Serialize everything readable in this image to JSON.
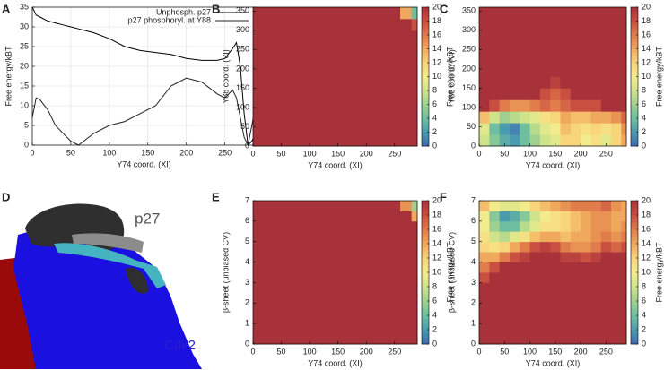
{
  "colorscale": [
    [
      0,
      "#3d6bb3"
    ],
    [
      2,
      "#4a9bb0"
    ],
    [
      4,
      "#6dbfa0"
    ],
    [
      6,
      "#9fd08f"
    ],
    [
      8,
      "#cfe38b"
    ],
    [
      10,
      "#f3ec8c"
    ],
    [
      12,
      "#f8d47a"
    ],
    [
      14,
      "#f0a85c"
    ],
    [
      16,
      "#e07d4b"
    ],
    [
      18,
      "#c94f41"
    ],
    [
      20,
      "#a8323a"
    ]
  ],
  "molecular_view": {
    "panel": "D",
    "labels": [
      "p27",
      "Cdk2"
    ]
  },
  "chart_data": [
    {
      "type": "line",
      "panel": "A",
      "x_label": "Y74 coord. (XI)",
      "y_label": "Free energy/kBT",
      "grid": true,
      "legend": "top-right",
      "x": [
        0,
        5,
        10,
        20,
        30,
        40,
        50,
        60,
        70,
        80,
        100,
        120,
        140,
        160,
        180,
        200,
        220,
        240,
        250,
        260,
        265,
        270,
        275,
        280,
        285,
        290
      ],
      "series": [
        {
          "name": "Unphosph. p27",
          "color": "#000000",
          "values": [
            35,
            33,
            32.5,
            31.5,
            31,
            30.5,
            30,
            29.5,
            29,
            28.5,
            27,
            25,
            24,
            23.5,
            23,
            22,
            21.5,
            21.5,
            22,
            24.5,
            26,
            20,
            8,
            0,
            1,
            3
          ]
        },
        {
          "name": "p27 phosphoryl. at Y88",
          "color": "#222222",
          "values": [
            7,
            12,
            11.5,
            9,
            5,
            3,
            1,
            0,
            1.5,
            3,
            5,
            6,
            8,
            10,
            15,
            17,
            16,
            13,
            12,
            14,
            12,
            7,
            2,
            0,
            5,
            10
          ]
        }
      ],
      "xlim": [
        0,
        290
      ],
      "xticks": [
        0,
        50,
        100,
        150,
        200,
        250
      ],
      "ylim": [
        0,
        35
      ],
      "yticks": [
        0,
        5,
        10,
        15,
        20,
        25,
        30,
        35
      ]
    },
    {
      "type": "heatmap",
      "panel": "B",
      "x_label": "Y74 coord. (XI)",
      "y_label": "Y88 coord. (VI)",
      "colorbar_label": "Free energy/kBT",
      "xbins": [
        0,
        20,
        40,
        60,
        80,
        100,
        120,
        140,
        160,
        180,
        200,
        220,
        240,
        260,
        280,
        290
      ],
      "ybins": [
        0,
        30,
        60,
        90,
        120,
        150,
        180,
        210,
        240,
        270,
        300,
        330,
        360
      ],
      "z": [
        [
          20,
          20,
          20,
          20,
          20,
          20,
          20,
          20,
          20,
          20,
          20,
          20,
          20,
          20,
          20
        ],
        [
          20,
          20,
          20,
          20,
          20,
          20,
          20,
          20,
          20,
          20,
          20,
          20,
          20,
          20,
          20
        ],
        [
          20,
          20,
          20,
          20,
          20,
          20,
          20,
          20,
          20,
          20,
          20,
          20,
          20,
          20,
          20
        ],
        [
          20,
          20,
          20,
          20,
          20,
          20,
          20,
          20,
          20,
          20,
          20,
          20,
          20,
          20,
          20
        ],
        [
          20,
          20,
          20,
          20,
          20,
          20,
          20,
          20,
          20,
          20,
          20,
          20,
          20,
          20,
          20
        ],
        [
          20,
          20,
          20,
          20,
          20,
          20,
          20,
          20,
          20,
          20,
          20,
          20,
          20,
          20,
          20
        ],
        [
          20,
          20,
          20,
          20,
          20,
          20,
          20,
          20,
          20,
          20,
          20,
          20,
          20,
          20,
          20
        ],
        [
          20,
          20,
          20,
          20,
          20,
          20,
          20,
          20,
          20,
          20,
          20,
          20,
          20,
          20,
          20
        ],
        [
          20,
          20,
          20,
          20,
          20,
          20,
          20,
          20,
          20,
          20,
          20,
          20,
          20,
          20,
          20
        ],
        [
          20,
          20,
          20,
          20,
          20,
          20,
          20,
          20,
          20,
          20,
          20,
          20,
          20,
          20,
          20
        ],
        [
          20,
          20,
          20,
          20,
          20,
          20,
          20,
          20,
          20,
          20,
          20,
          20,
          20,
          20,
          18
        ],
        [
          20,
          20,
          20,
          20,
          20,
          20,
          20,
          20,
          20,
          20,
          20,
          20,
          20,
          14,
          4
        ]
      ],
      "xlim": [
        0,
        290
      ],
      "xticks": [
        0,
        50,
        100,
        150,
        200,
        250
      ],
      "ylim": [
        0,
        360
      ],
      "yticks": [
        0,
        50,
        100,
        150,
        200,
        250,
        300,
        350
      ],
      "clim": [
        0,
        20
      ],
      "cticks": [
        0,
        2,
        4,
        6,
        8,
        10,
        12,
        14,
        16,
        18,
        20
      ]
    },
    {
      "type": "heatmap",
      "panel": "C",
      "x_label": "Y74 coord. (XI)",
      "y_label": "Y88 coord. (VI)",
      "colorbar_label": "Free energy/kBT",
      "xbins": [
        0,
        20,
        40,
        60,
        80,
        100,
        120,
        140,
        160,
        180,
        200,
        220,
        240,
        260,
        280,
        290
      ],
      "ybins": [
        0,
        30,
        60,
        90,
        120,
        150,
        180,
        210,
        240,
        270,
        300,
        330,
        360
      ],
      "z": [
        [
          8,
          5,
          3,
          2,
          4,
          6,
          8,
          9,
          12,
          12,
          10,
          11,
          9,
          12,
          14
        ],
        [
          9,
          4,
          2,
          1,
          4,
          7,
          9,
          10,
          13,
          12,
          11,
          12,
          11,
          12,
          15
        ],
        [
          13,
          8,
          6,
          7,
          8,
          9,
          11,
          12,
          14,
          13,
          13,
          14,
          14,
          15,
          17
        ],
        [
          20,
          18,
          16,
          15,
          15,
          16,
          17,
          16,
          17,
          18,
          18,
          18,
          20,
          20,
          20
        ],
        [
          20,
          20,
          20,
          20,
          20,
          20,
          18,
          17,
          18,
          20,
          20,
          20,
          20,
          20,
          20
        ],
        [
          20,
          20,
          20,
          20,
          20,
          20,
          20,
          19,
          20,
          20,
          20,
          20,
          20,
          20,
          20
        ],
        [
          20,
          20,
          20,
          20,
          20,
          20,
          20,
          20,
          20,
          20,
          20,
          20,
          20,
          20,
          20
        ],
        [
          20,
          20,
          20,
          20,
          20,
          20,
          20,
          20,
          20,
          20,
          20,
          20,
          20,
          20,
          20
        ],
        [
          20,
          20,
          20,
          20,
          20,
          20,
          20,
          20,
          20,
          20,
          20,
          20,
          20,
          20,
          20
        ],
        [
          20,
          20,
          20,
          20,
          20,
          20,
          20,
          20,
          20,
          20,
          20,
          20,
          20,
          20,
          20
        ],
        [
          20,
          20,
          20,
          20,
          20,
          20,
          20,
          20,
          20,
          20,
          20,
          20,
          20,
          20,
          20
        ],
        [
          20,
          20,
          20,
          20,
          20,
          20,
          20,
          20,
          20,
          20,
          20,
          20,
          20,
          20,
          20
        ]
      ],
      "xlim": [
        0,
        290
      ],
      "xticks": [
        0,
        50,
        100,
        150,
        200,
        250
      ],
      "ylim": [
        0,
        360
      ],
      "yticks": [
        0,
        50,
        100,
        150,
        200,
        250,
        300,
        350
      ],
      "clim": [
        0,
        20
      ],
      "cticks": [
        0,
        2,
        4,
        6,
        8,
        10,
        12,
        14,
        16,
        18,
        20
      ]
    },
    {
      "type": "heatmap",
      "panel": "E",
      "x_label": "Y74 coord. (XI)",
      "y_label": "β-sheet (unbiased CV)",
      "colorbar_label": "Free energy/kBT",
      "xbins": [
        0,
        20,
        40,
        60,
        80,
        100,
        120,
        140,
        160,
        180,
        200,
        220,
        240,
        260,
        280,
        290
      ],
      "ybins": [
        0,
        0.5,
        1,
        1.5,
        2,
        2.5,
        3,
        3.5,
        4,
        4.5,
        5,
        5.5,
        6,
        6.5,
        7
      ],
      "z": [
        [
          20,
          20,
          20,
          20,
          20,
          20,
          20,
          20,
          20,
          20,
          20,
          20,
          20,
          20,
          20
        ],
        [
          20,
          20,
          20,
          20,
          20,
          20,
          20,
          20,
          20,
          20,
          20,
          20,
          20,
          20,
          20
        ],
        [
          20,
          20,
          20,
          20,
          20,
          20,
          20,
          20,
          20,
          20,
          20,
          20,
          20,
          20,
          20
        ],
        [
          20,
          20,
          20,
          20,
          20,
          20,
          20,
          20,
          20,
          20,
          20,
          20,
          20,
          20,
          20
        ],
        [
          20,
          20,
          20,
          20,
          20,
          20,
          20,
          20,
          20,
          20,
          20,
          20,
          20,
          20,
          20
        ],
        [
          20,
          20,
          20,
          20,
          20,
          20,
          20,
          20,
          20,
          20,
          20,
          20,
          20,
          20,
          20
        ],
        [
          20,
          20,
          20,
          20,
          20,
          20,
          20,
          20,
          20,
          20,
          20,
          20,
          20,
          20,
          20
        ],
        [
          20,
          20,
          20,
          20,
          20,
          20,
          20,
          20,
          20,
          20,
          20,
          20,
          20,
          20,
          20
        ],
        [
          20,
          20,
          20,
          20,
          20,
          20,
          20,
          20,
          20,
          20,
          20,
          20,
          20,
          20,
          20
        ],
        [
          20,
          20,
          20,
          20,
          20,
          20,
          20,
          20,
          20,
          20,
          20,
          20,
          20,
          20,
          20
        ],
        [
          20,
          20,
          20,
          20,
          20,
          20,
          20,
          20,
          20,
          20,
          20,
          20,
          20,
          20,
          20
        ],
        [
          20,
          20,
          20,
          20,
          20,
          20,
          20,
          20,
          20,
          20,
          20,
          20,
          20,
          20,
          20
        ],
        [
          20,
          20,
          20,
          20,
          20,
          20,
          20,
          20,
          20,
          20,
          20,
          20,
          20,
          20,
          14
        ],
        [
          20,
          20,
          20,
          20,
          20,
          20,
          20,
          20,
          20,
          20,
          20,
          20,
          20,
          15,
          6
        ]
      ],
      "xlim": [
        0,
        290
      ],
      "xticks": [
        0,
        50,
        100,
        150,
        200,
        250
      ],
      "ylim": [
        0,
        7
      ],
      "yticks": [
        0,
        1,
        2,
        3,
        4,
        5,
        6,
        7
      ],
      "clim": [
        0,
        20
      ],
      "cticks": [
        0,
        2,
        4,
        6,
        8,
        10,
        12,
        14,
        16,
        18,
        20
      ]
    },
    {
      "type": "heatmap",
      "panel": "F",
      "x_label": "Y74 coord. (XI)",
      "y_label": "β-sheet (unbiased CV)",
      "colorbar_label": "Free energy/kBT",
      "xbins": [
        0,
        20,
        40,
        60,
        80,
        100,
        120,
        140,
        160,
        180,
        200,
        220,
        240,
        260,
        280,
        290
      ],
      "ybins": [
        0,
        0.5,
        1,
        1.5,
        2,
        2.5,
        3,
        3.5,
        4,
        4.5,
        5,
        5.5,
        6,
        6.5,
        7
      ],
      "z": [
        [
          20,
          20,
          20,
          20,
          20,
          20,
          20,
          20,
          20,
          20,
          20,
          20,
          20,
          20,
          20
        ],
        [
          20,
          20,
          20,
          20,
          20,
          20,
          20,
          20,
          20,
          20,
          20,
          20,
          20,
          20,
          20
        ],
        [
          20,
          20,
          20,
          20,
          20,
          20,
          20,
          20,
          20,
          20,
          20,
          20,
          20,
          20,
          20
        ],
        [
          20,
          20,
          20,
          20,
          20,
          20,
          20,
          20,
          20,
          20,
          20,
          20,
          20,
          20,
          20
        ],
        [
          20,
          20,
          20,
          20,
          20,
          20,
          20,
          20,
          20,
          20,
          20,
          20,
          20,
          20,
          20
        ],
        [
          20,
          20,
          20,
          20,
          20,
          20,
          20,
          20,
          20,
          20,
          20,
          20,
          20,
          20,
          20
        ],
        [
          18,
          20,
          20,
          20,
          20,
          20,
          20,
          20,
          20,
          20,
          20,
          20,
          20,
          20,
          20
        ],
        [
          16,
          18,
          20,
          20,
          20,
          20,
          20,
          20,
          20,
          20,
          20,
          20,
          20,
          20,
          20
        ],
        [
          14,
          14,
          16,
          18,
          19,
          20,
          20,
          20,
          19,
          19,
          18,
          19,
          20,
          20,
          20
        ],
        [
          12,
          11,
          12,
          14,
          16,
          18,
          19,
          18,
          16,
          15,
          15,
          16,
          18,
          17,
          18
        ],
        [
          11,
          8,
          7,
          9,
          11,
          13,
          14,
          14,
          13,
          14,
          14,
          15,
          16,
          15,
          16
        ],
        [
          10,
          6,
          4,
          4,
          7,
          9,
          11,
          11,
          12,
          13,
          14,
          15,
          15,
          14,
          15
        ],
        [
          10,
          5,
          2,
          3,
          5,
          8,
          10,
          11,
          12,
          13,
          14,
          15,
          15,
          14,
          14
        ],
        [
          13,
          10,
          9,
          9,
          10,
          12,
          13,
          14,
          15,
          16,
          16,
          16,
          17,
          15,
          14
        ]
      ],
      "xlim": [
        0,
        290
      ],
      "xticks": [
        0,
        50,
        100,
        150,
        200,
        250
      ],
      "ylim": [
        0,
        7
      ],
      "yticks": [
        0,
        1,
        2,
        3,
        4,
        5,
        6,
        7
      ],
      "clim": [
        0,
        20
      ],
      "cticks": [
        0,
        2,
        4,
        6,
        8,
        10,
        12,
        14,
        16,
        18,
        20
      ]
    }
  ]
}
